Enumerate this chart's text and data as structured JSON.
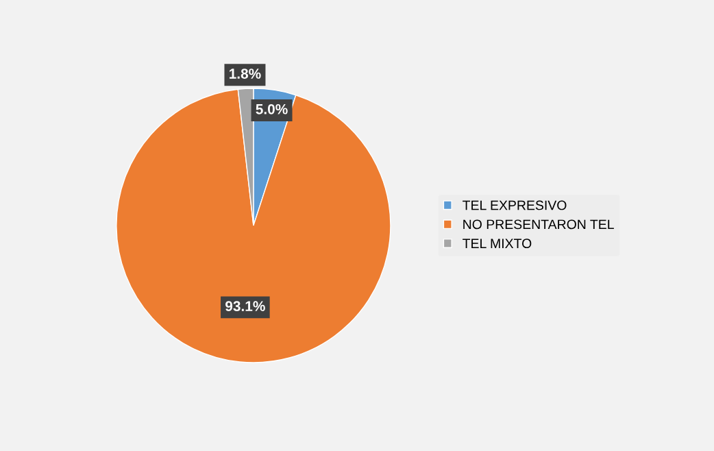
{
  "chart_data": {
    "type": "pie",
    "categories": [
      "TEL EXPRESIVO",
      "NO PRESENTARON TEL",
      "TEL MIXTO"
    ],
    "values": [
      5.0,
      93.1,
      1.8
    ],
    "colors": [
      "#5b9bd5",
      "#ed7d31",
      "#a5a5a5"
    ],
    "value_labels": [
      "5.0%",
      "93.1%",
      "1.8%"
    ],
    "legend": "right"
  }
}
